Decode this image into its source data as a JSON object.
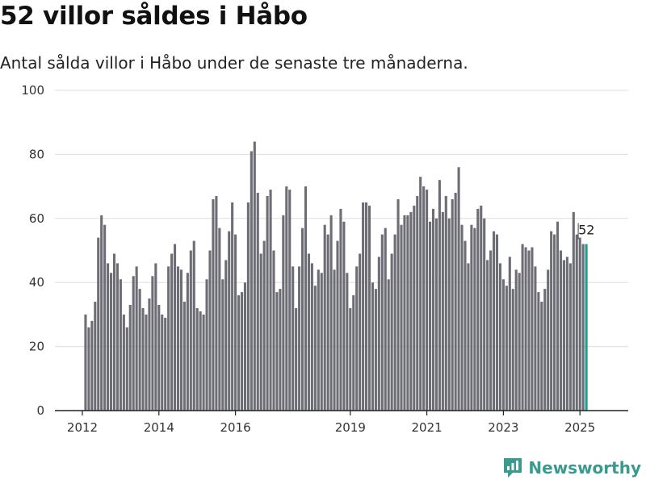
{
  "title": "52 villor såldes i Håbo",
  "subtitle": "Antal sålda villor i Håbo under de senaste tre månaderna.",
  "brand": "Newsworthy",
  "colors": {
    "bar": "#6d6d75",
    "highlight": "#1a9e93",
    "grid": "#dddddd",
    "brand": "#3a9a8e"
  },
  "chart_data": {
    "type": "bar",
    "title": "52 villor såldes i Håbo",
    "subtitle": "Antal sålda villor i Håbo under de senaste tre månaderna.",
    "xlabel": "",
    "ylabel": "",
    "ylim": [
      0,
      100
    ],
    "yticks": [
      0,
      20,
      40,
      60,
      80,
      100
    ],
    "xticks": [
      "2012",
      "2014",
      "2016",
      "2019",
      "2021",
      "2023",
      "2025"
    ],
    "grid": true,
    "start": "2012-02",
    "highlight_label": "52",
    "values": [
      30,
      26,
      28,
      34,
      54,
      61,
      58,
      46,
      43,
      49,
      46,
      41,
      30,
      26,
      33,
      42,
      45,
      38,
      32,
      30,
      35,
      42,
      46,
      33,
      30,
      29,
      45,
      49,
      52,
      45,
      44,
      34,
      43,
      50,
      53,
      32,
      31,
      30,
      41,
      50,
      66,
      67,
      57,
      41,
      47,
      56,
      65,
      55,
      36,
      37,
      40,
      65,
      81,
      84,
      68,
      49,
      53,
      67,
      69,
      50,
      37,
      38,
      61,
      70,
      69,
      45,
      32,
      45,
      57,
      70,
      49,
      46,
      39,
      44,
      43,
      58,
      55,
      61,
      44,
      53,
      63,
      59,
      43,
      32,
      36,
      45,
      49,
      65,
      65,
      64,
      40,
      38,
      48,
      55,
      57,
      41,
      49,
      55,
      66,
      58,
      61,
      61,
      62,
      64,
      67,
      73,
      70,
      69,
      59,
      63,
      60,
      72,
      62,
      67,
      60,
      66,
      68,
      76,
      58,
      53,
      46,
      58,
      57,
      63,
      64,
      60,
      47,
      50,
      56,
      55,
      46,
      41,
      39,
      48,
      38,
      44,
      43,
      52,
      51,
      50,
      51,
      45,
      37,
      34,
      38,
      44,
      56,
      55,
      59,
      50,
      47,
      48,
      46,
      62,
      55,
      54,
      52,
      52
    ]
  }
}
